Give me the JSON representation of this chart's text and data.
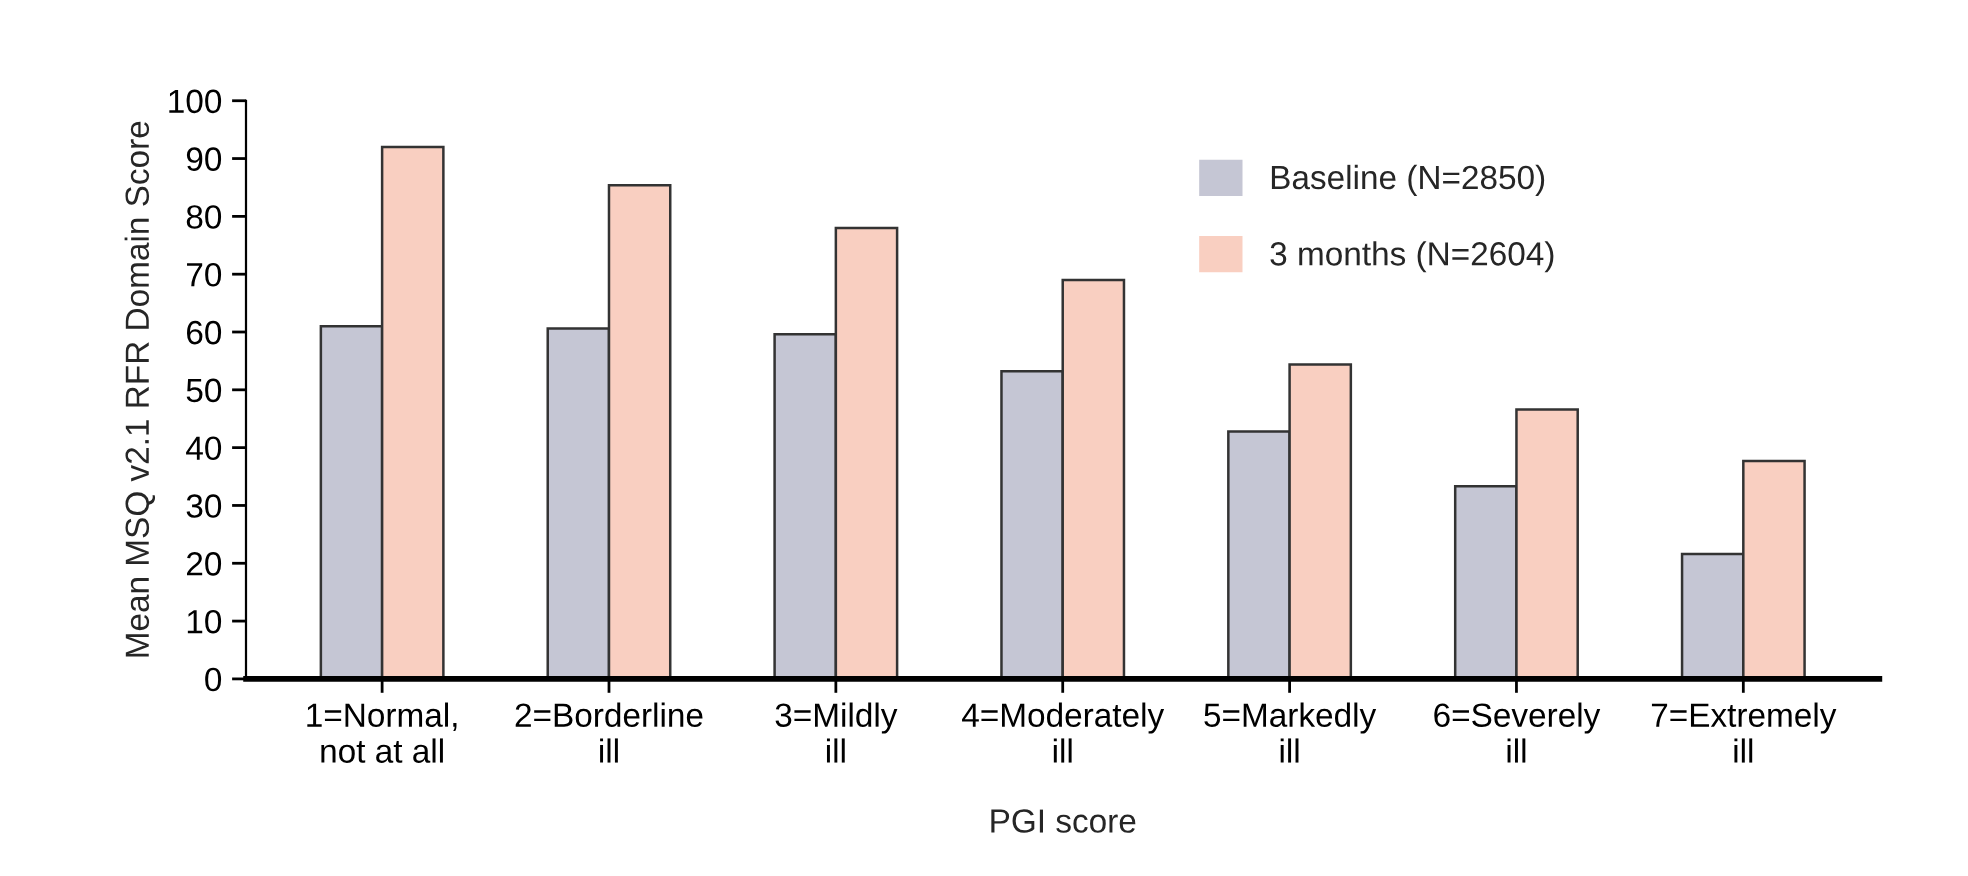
{
  "chart_data": {
    "type": "bar",
    "xlabel": "PGI score",
    "ylabel": "Mean MSQ v2.1 RFR Domain Score",
    "categories": [
      "1=Normal,\nnot at all",
      "2=Borderline\nill",
      "3=Mildly\nill",
      "4=Moderately\nill",
      "5=Markedly\nill",
      "6=Severely\nill",
      "7=Extremely\nill"
    ],
    "series": [
      {
        "name": "Baseline (N=2850)",
        "color": "#c5c6d4",
        "values": [
          61,
          60.6,
          59.6,
          53.2,
          42.8,
          33.3,
          21.6
        ]
      },
      {
        "name": "3 months (N=2604)",
        "color": "#f9cfc1",
        "values": [
          92,
          85.4,
          78,
          69,
          54.4,
          46.6,
          37.7
        ]
      }
    ],
    "ylim": [
      0,
      100
    ],
    "yticks": [
      0,
      10,
      20,
      30,
      40,
      50,
      60,
      70,
      80,
      90,
      100
    ],
    "grid": false,
    "legend": "top right"
  }
}
